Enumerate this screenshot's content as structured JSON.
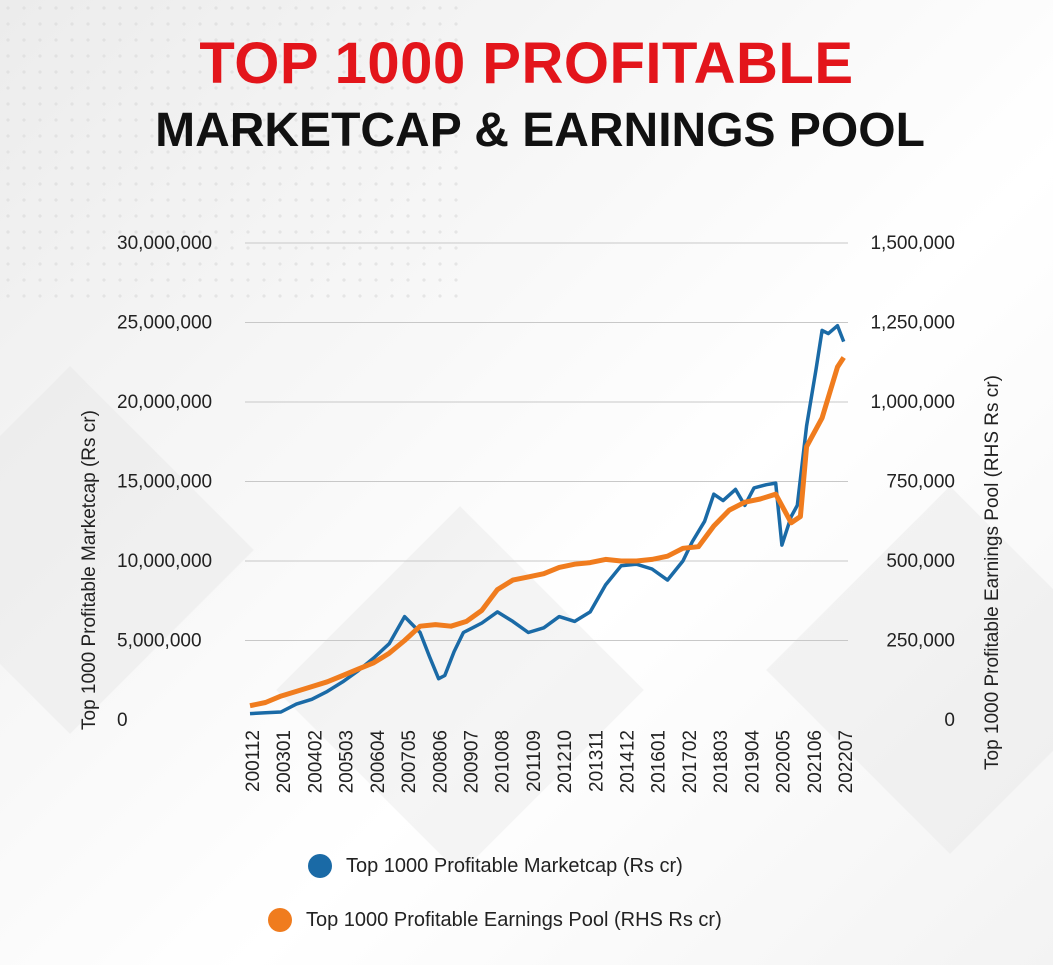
{
  "title": "TOP 1000 PROFITABLE",
  "subtitle": "MARKETCAP & EARNINGS POOL",
  "colors": {
    "title_red": "#e3151b",
    "marketcap": "#1a6aa6",
    "earnings": "#f07c1e",
    "grid": "#c8c8c8"
  },
  "chart_data": {
    "type": "line",
    "ylabel": "Top 1000 Profitable Marketcap (Rs cr)",
    "y2label": "Top 1000 Profitable Earnings Pool (RHS Rs cr)",
    "ylim": [
      0,
      30000000
    ],
    "y2lim": [
      0,
      1500000
    ],
    "y_ticks": [
      0,
      5000000,
      10000000,
      15000000,
      20000000,
      25000000,
      30000000
    ],
    "y_tick_labels": [
      "0",
      "5,000,000",
      "10,000,000",
      "15,000,000",
      "20,000,000",
      "25,000,000",
      "30,000,000"
    ],
    "y2_ticks": [
      0,
      250000,
      500000,
      750000,
      1000000,
      1250000,
      1500000
    ],
    "y2_tick_labels": [
      "0",
      "250,000",
      "500,000",
      "750,000",
      "1,000,000",
      "1,250,000",
      "1,500,000"
    ],
    "x_tick_labels": [
      "200112",
      "200301",
      "200402",
      "200503",
      "200604",
      "200705",
      "200806",
      "200907",
      "201008",
      "201109",
      "201210",
      "201311",
      "201412",
      "201601",
      "201702",
      "201803",
      "201904",
      "202005",
      "202106",
      "202207"
    ],
    "legend_position": "bottom",
    "grid": true,
    "series": [
      {
        "name": "Top 1000 Profitable Marketcap (Rs cr)",
        "axis": "left",
        "color": "#1a6aa6",
        "x": [
          0,
          0.5,
          1,
          1.5,
          2,
          2.5,
          3,
          3.5,
          4,
          4.5,
          5,
          5.5,
          5.8,
          6.1,
          6.3,
          6.6,
          6.9,
          7.2,
          7.5,
          8,
          8.5,
          9,
          9.5,
          10,
          10.5,
          11,
          11.5,
          12,
          12.5,
          13,
          13.5,
          14,
          14.3,
          14.7,
          15,
          15.3,
          15.7,
          16,
          16.3,
          16.7,
          17,
          17.2,
          17.5,
          17.7,
          18,
          18.3,
          18.5,
          18.7,
          19,
          19.2
        ],
        "values": [
          400000,
          450000,
          500000,
          1000000,
          1300000,
          1800000,
          2400000,
          3100000,
          3900000,
          4800000,
          6500000,
          5500000,
          4000000,
          2600000,
          2800000,
          4300000,
          5500000,
          5800000,
          6100000,
          6800000,
          6200000,
          5500000,
          5800000,
          6500000,
          6200000,
          6800000,
          8500000,
          9700000,
          9800000,
          9500000,
          8800000,
          10000000,
          11200000,
          12500000,
          14200000,
          13800000,
          14500000,
          13500000,
          14600000,
          14800000,
          14900000,
          11000000,
          12800000,
          13500000,
          18500000,
          22000000,
          24500000,
          24300000,
          24800000,
          23800000
        ]
      },
      {
        "name": "Top 1000 Profitable Earnings Pool (RHS Rs cr)",
        "axis": "right",
        "color": "#f07c1e",
        "x": [
          0,
          0.5,
          1,
          1.5,
          2,
          2.5,
          3,
          3.5,
          4,
          4.5,
          5,
          5.5,
          6,
          6.5,
          7,
          7.5,
          8,
          8.5,
          9,
          9.5,
          10,
          10.5,
          11,
          11.5,
          12,
          12.5,
          13,
          13.5,
          14,
          14.5,
          15,
          15.5,
          16,
          16.5,
          17,
          17.5,
          17.8,
          18,
          18.5,
          19,
          19.2
        ],
        "values": [
          45000,
          55000,
          75000,
          90000,
          105000,
          120000,
          140000,
          160000,
          180000,
          210000,
          250000,
          295000,
          300000,
          295000,
          310000,
          345000,
          410000,
          440000,
          450000,
          460000,
          480000,
          490000,
          495000,
          505000,
          500000,
          500000,
          505000,
          515000,
          540000,
          545000,
          610000,
          660000,
          685000,
          695000,
          710000,
          620000,
          640000,
          860000,
          950000,
          1110000,
          1140000
        ]
      }
    ]
  },
  "legend": [
    {
      "label": "Top 1000 Profitable Marketcap (Rs cr)",
      "color": "#1a6aa6"
    },
    {
      "label": "Top 1000 Profitable Earnings Pool (RHS Rs cr)",
      "color": "#f07c1e"
    }
  ]
}
